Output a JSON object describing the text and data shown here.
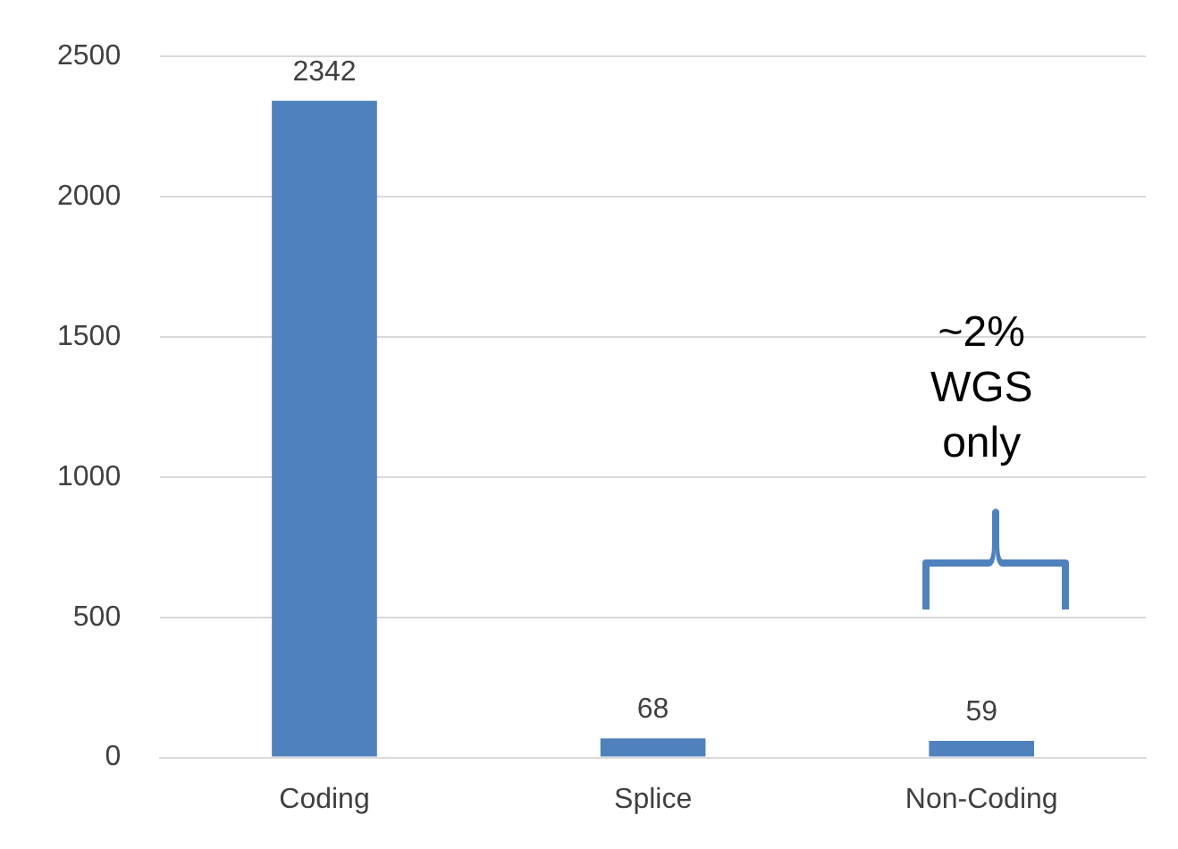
{
  "chart_data": {
    "type": "bar",
    "categories": [
      "Coding",
      "Splice",
      "Non-Coding"
    ],
    "values": [
      2342,
      68,
      59
    ],
    "color": "#4f81bd",
    "ylim": [
      0,
      2500
    ],
    "yticks": [
      0,
      500,
      1000,
      1500,
      2000,
      2500
    ],
    "grid": "y",
    "data_labels": true,
    "annotations": [
      "~2%\nWGS\nonly"
    ]
  }
}
